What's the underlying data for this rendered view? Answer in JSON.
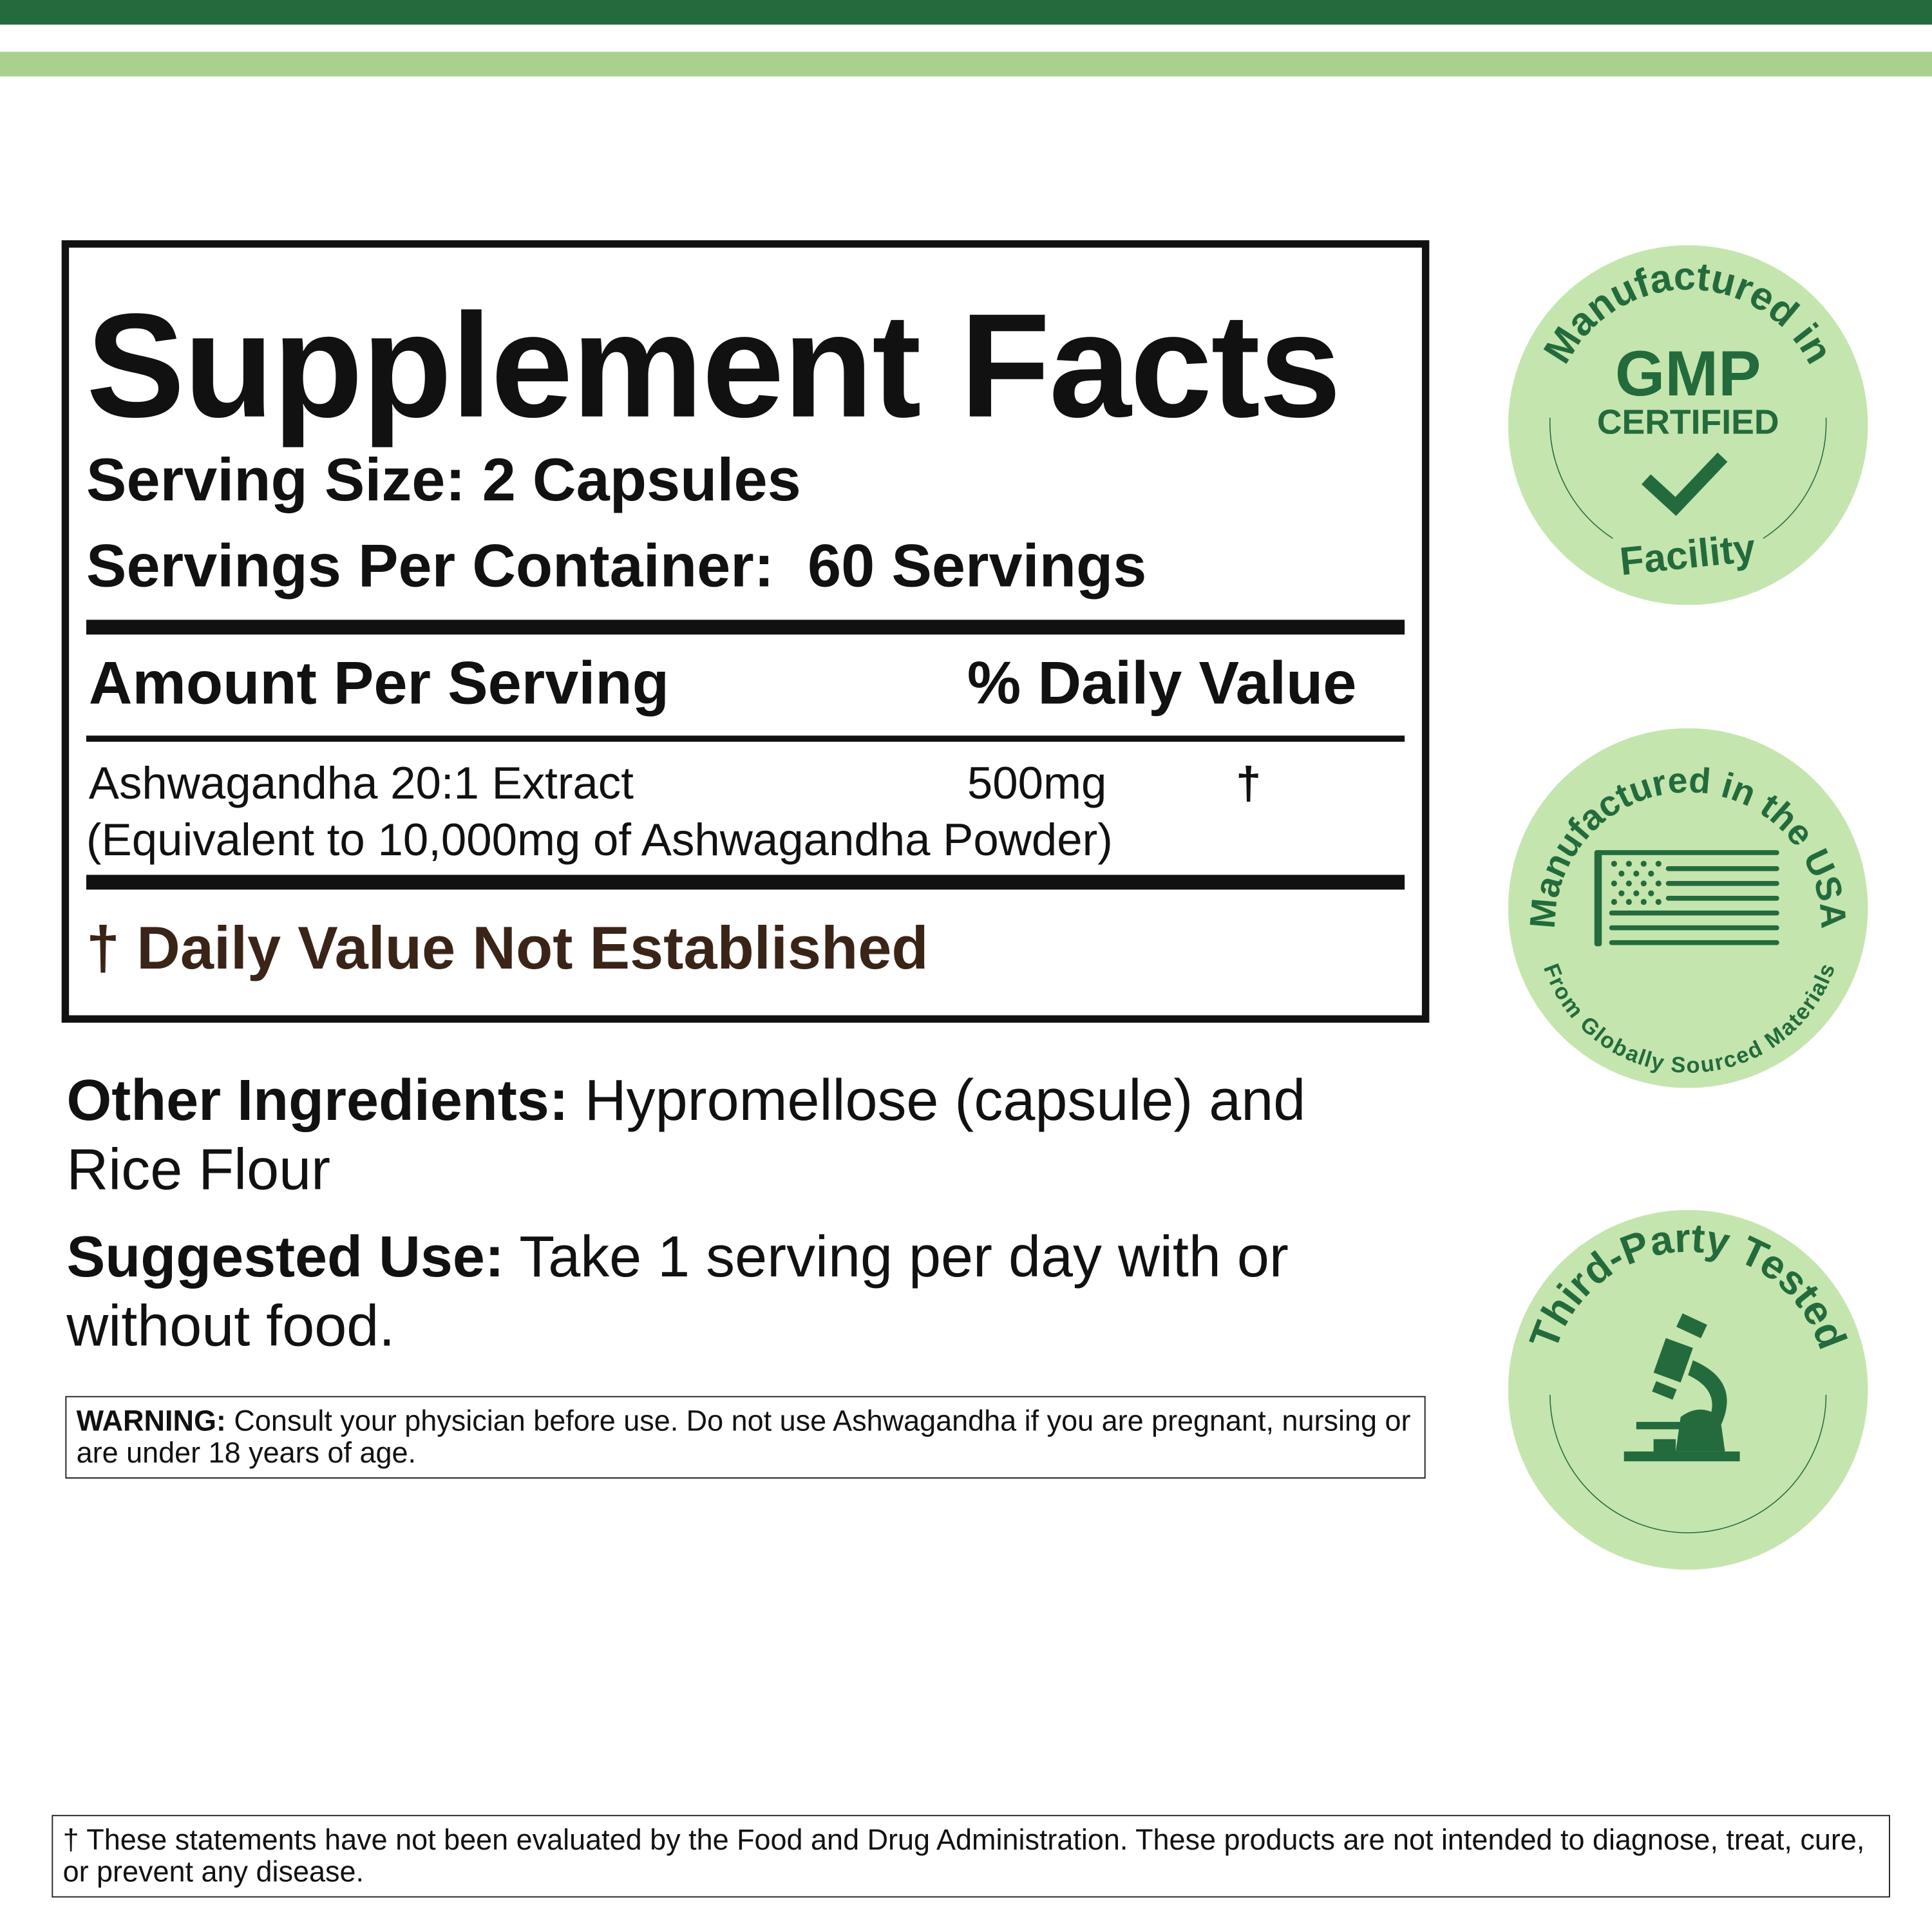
{
  "colors": {
    "dark_green": "#236b3c",
    "light_green": "#a8d18d",
    "badge_fill": "#c5e5ae",
    "dagger_note": "#3a2418"
  },
  "facts": {
    "title": "Supplement Facts",
    "serving_size": "Serving Size: 2 Capsules",
    "servings_per_container": "Servings Per Container:  60 Servings",
    "amount_header": "Amount Per Serving",
    "dv_header": "% Daily Value",
    "ingredient": {
      "name": "Ashwagandha 20:1 Extract",
      "amount": "500mg",
      "dv": "†",
      "note": "(Equivalent to 10,000mg of Ashwagandha Powder)"
    },
    "footnote": "† Daily Value Not Established"
  },
  "other_ingredients": {
    "label": "Other Ingredients:",
    "text": " Hypromellose (capsule) and Rice Flour"
  },
  "suggested_use": {
    "label": "Suggested Use:",
    "text": " Take 1 serving per day with or without food."
  },
  "warning": {
    "label": "WARNING:",
    "text": " Consult your physician before use. Do not use Ashwagandha if you are pregnant, nursing or are under 18 years of age."
  },
  "disclaimer": "† These statements have not been evaluated by the Food and Drug Administration. These products are not intended to diagnose, treat, cure, or prevent any disease.",
  "badges": [
    {
      "top": "Manufactured in",
      "main": "GMP",
      "sub": "CERTIFIED",
      "bottom": "Facility",
      "icon": "checkmark-icon"
    },
    {
      "top": "Manufactured in the USA",
      "bottom": "From Globally Sourced Materials",
      "icon": "us-flag-icon"
    },
    {
      "top": "Third-Party Tested",
      "icon": "microscope-icon"
    }
  ]
}
